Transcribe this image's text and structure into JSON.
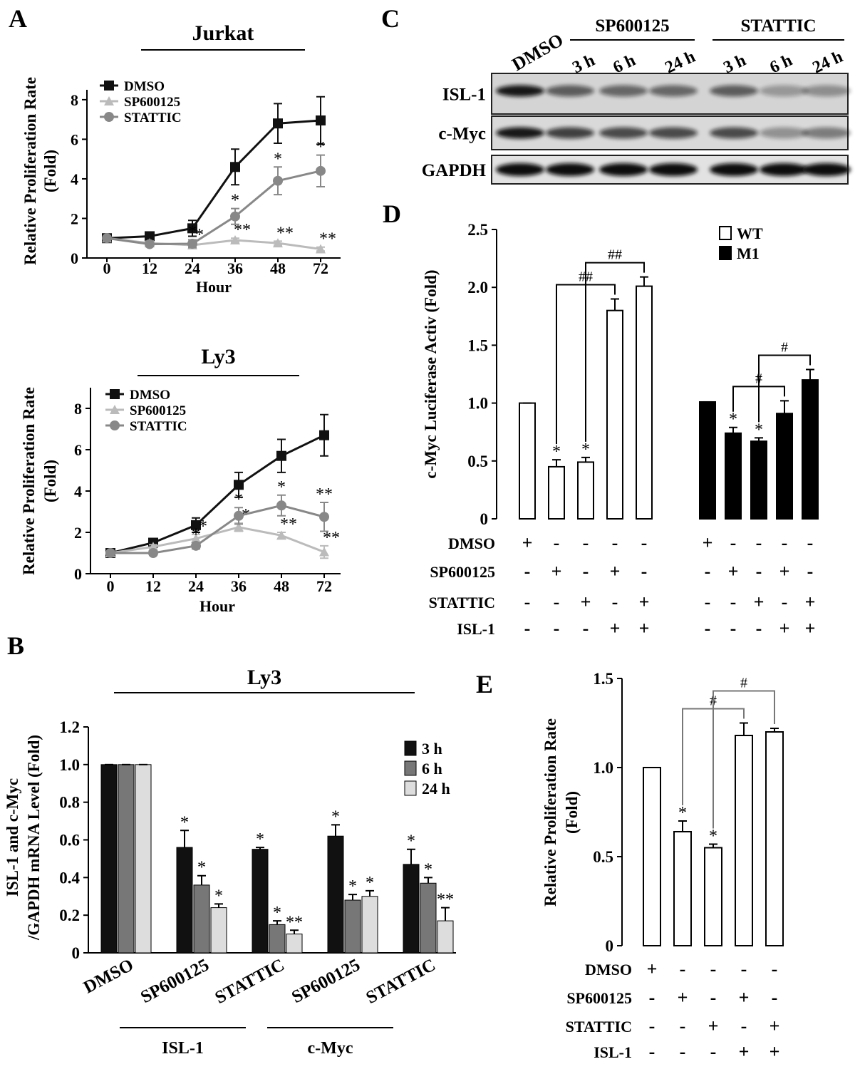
{
  "panels": [
    "A",
    "B",
    "C",
    "D",
    "E"
  ],
  "blot": {
    "control": "DMSO",
    "treatments": [
      {
        "label": "SP600125",
        "times": [
          "3 h",
          "6 h",
          "24 h"
        ]
      },
      {
        "label": "STATTIC",
        "times": [
          "3 h",
          "6 h",
          "24 h"
        ]
      }
    ],
    "rows": [
      "ISL-1",
      "c-Myc",
      "GAPDH"
    ]
  },
  "chart_data": [
    {
      "type": "line",
      "title": "Jurkat",
      "categories": [
        "0",
        "12",
        "24",
        "36",
        "48",
        "72"
      ],
      "xlabel": "Hour",
      "ylabel": [
        "Relative Proliferation Rate",
        "(Fold)"
      ],
      "ylim": [
        0,
        8.5
      ],
      "yticks": [
        0,
        2,
        4,
        6,
        8
      ],
      "series": [
        {
          "name": "DMSO",
          "color": "#111111",
          "marker": "square",
          "values": [
            1,
            1.1,
            1.5,
            4.6,
            6.8,
            6.95
          ],
          "errors": [
            0.1,
            0.2,
            0.4,
            0.9,
            1.0,
            1.2
          ],
          "annotations": [
            null,
            null,
            null,
            null,
            null,
            null
          ]
        },
        {
          "name": "SP600125",
          "color": "#bbbbbb",
          "marker": "triangle",
          "values": [
            1,
            0.75,
            0.65,
            0.9,
            0.75,
            0.45
          ],
          "errors": [
            0.1,
            0.1,
            0.1,
            0.1,
            0.1,
            0.1
          ],
          "annotations": [
            null,
            null,
            "*",
            "**",
            "**",
            "**"
          ]
        },
        {
          "name": "STATTIC",
          "color": "#888888",
          "marker": "circle",
          "values": [
            1,
            0.7,
            0.72,
            2.1,
            3.9,
            4.4
          ],
          "errors": [
            0.1,
            0.1,
            0.2,
            0.4,
            0.7,
            0.8
          ],
          "annotations": [
            null,
            null,
            "*",
            "*",
            "*",
            "*"
          ]
        }
      ]
    },
    {
      "type": "line",
      "title": "Ly3",
      "categories": [
        "0",
        "12",
        "24",
        "36",
        "48",
        "72"
      ],
      "xlabel": "Hour",
      "ylabel": [
        "Relative Proliferation Rate",
        "(Fold)"
      ],
      "ylim": [
        0,
        9
      ],
      "yticks": [
        0,
        2,
        4,
        6,
        8
      ],
      "series": [
        {
          "name": "DMSO",
          "color": "#111111",
          "marker": "square",
          "values": [
            1,
            1.5,
            2.35,
            4.3,
            5.7,
            6.7
          ],
          "errors": [
            0.1,
            0.2,
            0.35,
            0.6,
            0.8,
            1.0
          ],
          "annotations": [
            null,
            null,
            null,
            null,
            null,
            null
          ]
        },
        {
          "name": "SP600125",
          "color": "#bbbbbb",
          "marker": "triangle",
          "values": [
            1,
            1.3,
            1.7,
            2.25,
            1.85,
            1.05
          ],
          "errors": [
            0.1,
            0.1,
            0.2,
            0.2,
            0.15,
            0.3
          ],
          "annotations": [
            null,
            null,
            "*",
            "*",
            "**",
            "**"
          ]
        },
        {
          "name": "STATTIC",
          "color": "#888888",
          "marker": "circle",
          "values": [
            1,
            1.0,
            1.35,
            2.8,
            3.3,
            2.75
          ],
          "errors": [
            0.1,
            0.1,
            0.15,
            0.4,
            0.5,
            0.7
          ],
          "annotations": [
            null,
            null,
            "*",
            "*",
            "*",
            "**"
          ]
        }
      ]
    },
    {
      "type": "grouped_bar",
      "title": "Ly3",
      "categories": [
        "DMSO",
        "SP600125",
        "STATTIC",
        "SP600125",
        "STATTIC"
      ],
      "group_labels": [
        "ISL-1",
        "c-Myc"
      ],
      "ylabel": [
        "ISL-1 and c-Myc",
        "/GAPDH mRNA Level (Fold)"
      ],
      "ylim": [
        0,
        1.2
      ],
      "yticks": [
        0,
        0.2,
        0.4,
        0.6,
        0.8,
        {
          "value": 1,
          "label": "1.0"
        },
        1.2
      ],
      "series": [
        {
          "name": "3 h",
          "color": "#111111",
          "values": [
            1,
            0.56,
            0.55,
            0.62,
            0.47
          ],
          "errors": [
            0,
            0.09,
            0.01,
            0.06,
            0.08
          ],
          "annotations": [
            null,
            "*",
            "*",
            "*",
            "*"
          ]
        },
        {
          "name": "6 h",
          "color": "#777777",
          "values": [
            1,
            0.36,
            0.15,
            0.28,
            0.37
          ],
          "errors": [
            0,
            0.05,
            0.02,
            0.03,
            0.03
          ],
          "annotations": [
            null,
            "*",
            "*",
            "*",
            "*"
          ]
        },
        {
          "name": "24 h",
          "color": "#dddddd",
          "values": [
            1,
            0.24,
            0.1,
            0.3,
            0.17
          ],
          "errors": [
            0,
            0.02,
            0.02,
            0.03,
            0.07
          ],
          "annotations": [
            null,
            "*",
            "**",
            "*",
            "**"
          ]
        }
      ]
    },
    {
      "type": "condition_bar",
      "ylabel": [
        "c-Myc Luciferase Activ  (Fold)"
      ],
      "ylim": [
        0,
        2.5
      ],
      "yticks": [
        0,
        0.5,
        {
          "value": 1,
          "label": "1.0"
        },
        1.5,
        {
          "value": 2,
          "label": "2.0"
        },
        2.5
      ],
      "series": [
        {
          "name": "WT",
          "color": "#ffffff",
          "values": [
            1,
            0.45,
            0.49,
            1.8,
            2.01
          ],
          "errors": [
            0,
            0.06,
            0.04,
            0.1,
            0.08
          ],
          "annotations": [
            null,
            "*",
            "*",
            null,
            null
          ]
        },
        {
          "name": "M1",
          "color": "#000000",
          "values": [
            1.01,
            0.74,
            0.67,
            0.91,
            1.2
          ],
          "errors": [
            0,
            0.05,
            0.03,
            0.11,
            0.09
          ],
          "annotations": [
            null,
            "*",
            "*",
            null,
            null
          ]
        }
      ],
      "conditions": [
        {
          "name": "DMSO",
          "marks": [
            "+",
            "-",
            "-",
            "-",
            "-"
          ]
        },
        {
          "name": "SP600125",
          "marks": [
            "-",
            "+",
            "-",
            "+",
            "-"
          ]
        },
        {
          "name": "STATTIC",
          "marks": [
            "-",
            "-",
            "+",
            "-",
            "+"
          ]
        },
        {
          "name": "ISL-1",
          "marks": [
            "-",
            "-",
            "-",
            "+",
            "+"
          ]
        }
      ],
      "comparisons": [
        {
          "series": 0,
          "from": 1,
          "to": 3,
          "label": "##"
        },
        {
          "series": 0,
          "from": 2,
          "to": 4,
          "label": "##"
        },
        {
          "series": 1,
          "from": 1,
          "to": 3,
          "label": "#"
        },
        {
          "series": 1,
          "from": 2,
          "to": 4,
          "label": "#"
        }
      ],
      "bracket_color": "#000000",
      "legend": true
    },
    {
      "type": "condition_bar",
      "ylabel": [
        "Relative Proliferation Rate",
        "(Fold)"
      ],
      "ylim": [
        0,
        1.5
      ],
      "yticks": [
        0,
        0.5,
        {
          "value": 1,
          "label": "1.0"
        },
        1.5
      ],
      "series": [
        {
          "name": "WT",
          "color": "#ffffff",
          "values": [
            1,
            0.64,
            0.55,
            1.18,
            1.2
          ],
          "errors": [
            0,
            0.06,
            0.02,
            0.07,
            0.02
          ],
          "annotations": [
            null,
            "*",
            "*",
            null,
            null
          ]
        }
      ],
      "conditions": [
        {
          "name": "DMSO",
          "marks": [
            "+",
            "-",
            "-",
            "-",
            "-"
          ]
        },
        {
          "name": "SP600125",
          "marks": [
            "-",
            "+",
            "-",
            "+",
            "-"
          ]
        },
        {
          "name": "STATTIC",
          "marks": [
            "-",
            "-",
            "+",
            "-",
            "+"
          ]
        },
        {
          "name": "ISL-1",
          "marks": [
            "-",
            "-",
            "-",
            "+",
            "+"
          ]
        }
      ],
      "comparisons": [
        {
          "series": 0,
          "from": 1,
          "to": 3,
          "label": "#"
        },
        {
          "series": 0,
          "from": 2,
          "to": 4,
          "label": "#"
        }
      ],
      "bracket_color": "#777777",
      "legend": false
    }
  ]
}
